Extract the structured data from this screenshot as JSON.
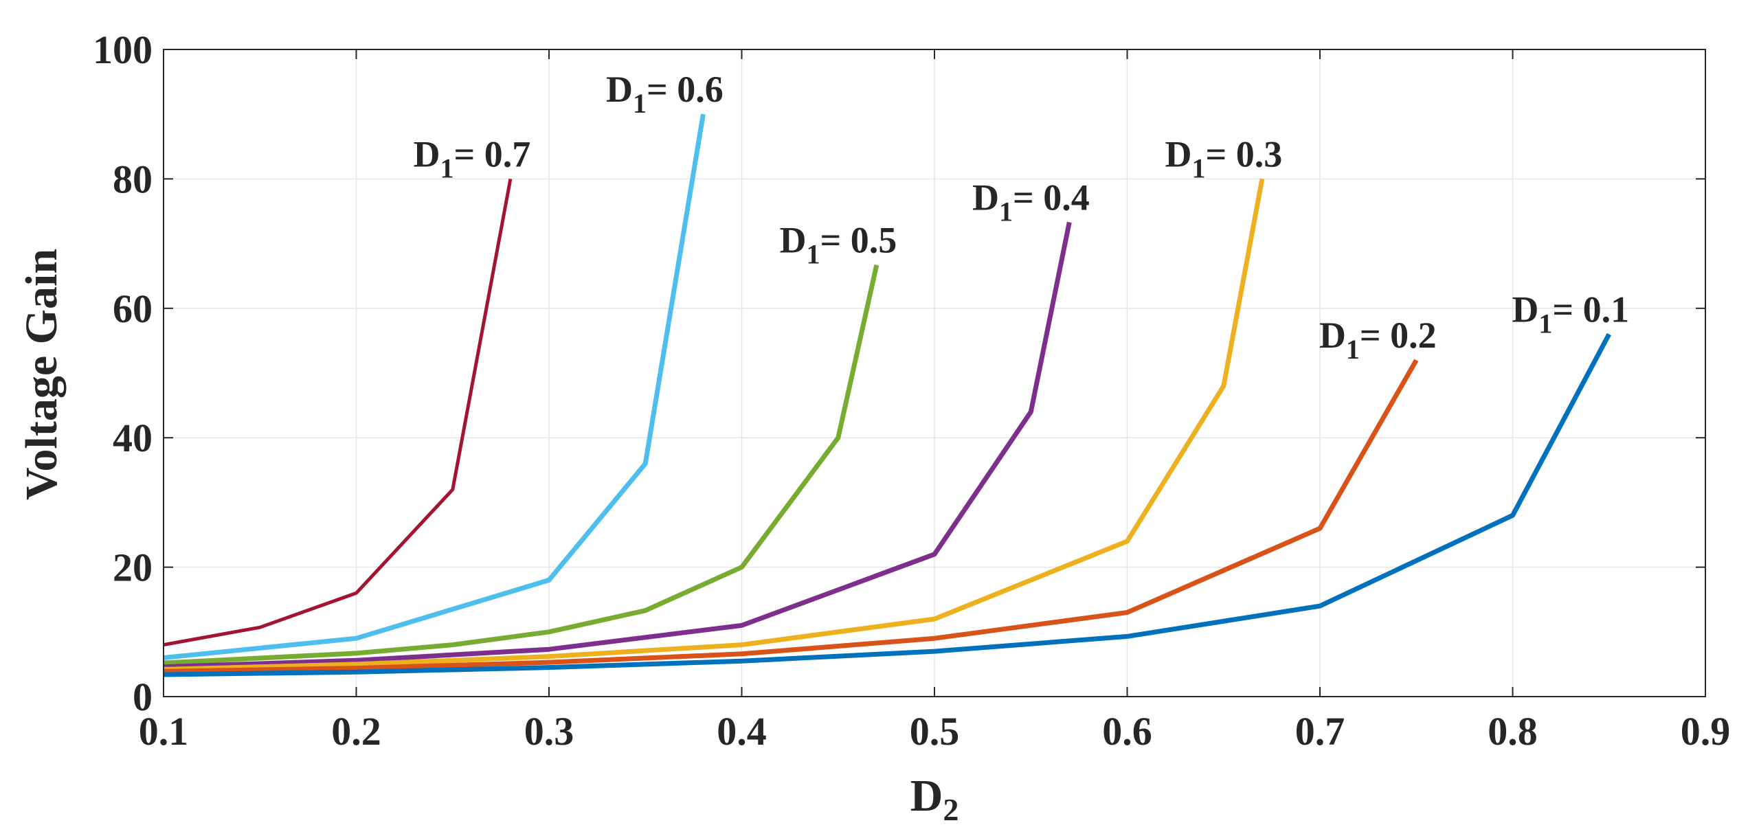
{
  "chart_data": {
    "type": "line",
    "title": "",
    "xlabel": "D",
    "xlabel_sub": "2",
    "ylabel": "Voltage Gain",
    "xlim": [
      0.1,
      0.9
    ],
    "ylim": [
      0,
      100
    ],
    "xticks": [
      0.1,
      0.2,
      0.3,
      0.4,
      0.5,
      0.6,
      0.7,
      0.8,
      0.9
    ],
    "yticks": [
      0,
      20,
      40,
      60,
      80,
      100
    ],
    "xtick_labels": [
      "0.1",
      "0.2",
      "0.3",
      "0.4",
      "0.5",
      "0.6",
      "0.7",
      "0.8",
      "0.9"
    ],
    "ytick_labels": [
      "0",
      "20",
      "40",
      "60",
      "80",
      "100"
    ],
    "grid": true,
    "series": [
      {
        "name": "D1 = 0.1",
        "label_main": "D",
        "label_sub": "1",
        "label_value": "= 0.1",
        "color": "#0072BD",
        "x": [
          0.1,
          0.2,
          0.3,
          0.4,
          0.5,
          0.6,
          0.7,
          0.8,
          0.85
        ],
        "y": [
          3.4,
          3.8,
          4.5,
          5.5,
          7,
          9.3,
          14,
          28,
          56
        ]
      },
      {
        "name": "D1 = 0.2",
        "label_main": "D",
        "label_sub": "1",
        "label_value": "= 0.2",
        "color": "#D95319",
        "x": [
          0.1,
          0.2,
          0.3,
          0.4,
          0.5,
          0.6,
          0.7,
          0.75
        ],
        "y": [
          3.9,
          4.4,
          5.3,
          6.6,
          9,
          13,
          26,
          52
        ]
      },
      {
        "name": "D1 = 0.3",
        "label_main": "D",
        "label_sub": "1",
        "label_value": "= 0.3",
        "color": "#EDB120",
        "x": [
          0.1,
          0.2,
          0.3,
          0.4,
          0.5,
          0.6,
          0.65,
          0.67
        ],
        "y": [
          4.2,
          5,
          6.2,
          8,
          12,
          24,
          48,
          80
        ]
      },
      {
        "name": "D1 = 0.4",
        "label_main": "D",
        "label_sub": "1",
        "label_value": "= 0.4",
        "color": "#7E2F8E",
        "x": [
          0.1,
          0.2,
          0.3,
          0.4,
          0.5,
          0.55,
          0.57
        ],
        "y": [
          4.6,
          5.6,
          7.3,
          11,
          22,
          44,
          73.3
        ]
      },
      {
        "name": "D1 = 0.5",
        "label_main": "D",
        "label_sub": "1",
        "label_value": "= 0.5",
        "color": "#77AC30",
        "x": [
          0.1,
          0.2,
          0.25,
          0.3,
          0.35,
          0.4,
          0.45,
          0.47
        ],
        "y": [
          5.2,
          6.7,
          8,
          10,
          13.3,
          20,
          40,
          66.7
        ]
      },
      {
        "name": "D1 = 0.6",
        "label_main": "D",
        "label_sub": "1",
        "label_value": "= 0.6",
        "color": "#4DBEEE",
        "x": [
          0.1,
          0.2,
          0.3,
          0.35,
          0.38
        ],
        "y": [
          6,
          9,
          18,
          36,
          90
        ]
      },
      {
        "name": "D1 = 0.7",
        "label_main": "D",
        "label_sub": "1",
        "label_value": "= 0.7",
        "color": "#A2142F",
        "x": [
          0.1,
          0.15,
          0.2,
          0.25,
          0.28
        ],
        "y": [
          8,
          10.7,
          16,
          32,
          80
        ]
      }
    ]
  }
}
